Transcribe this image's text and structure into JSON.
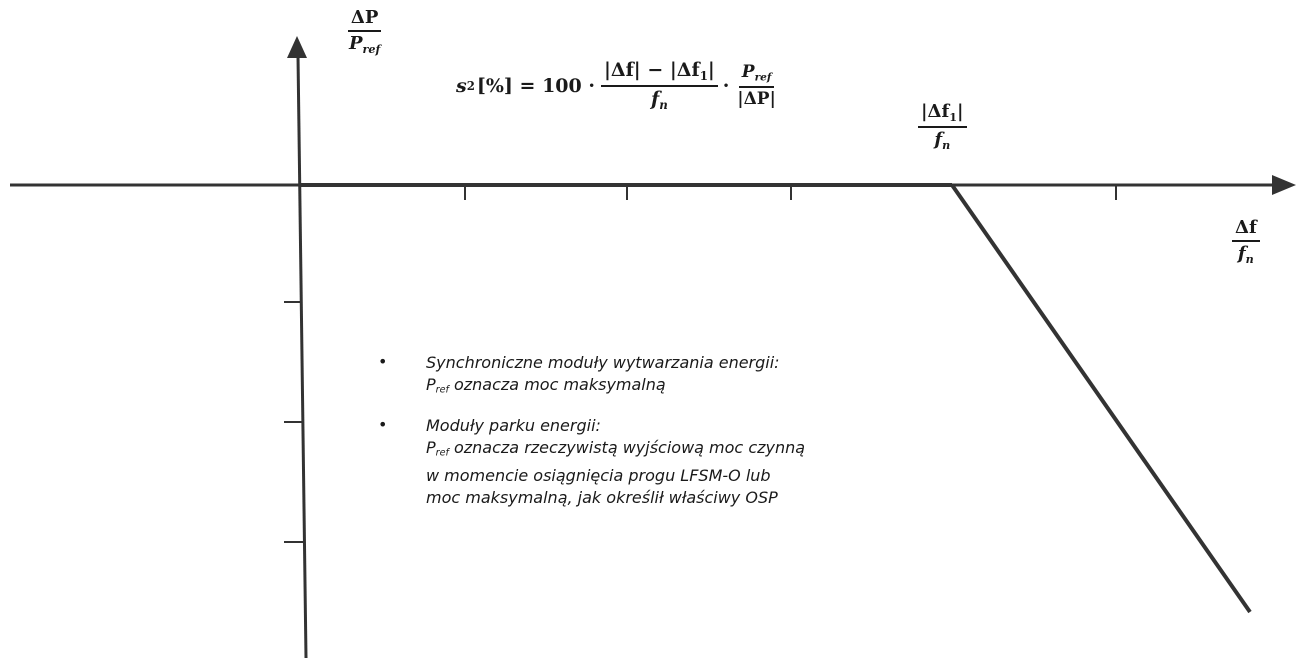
{
  "y_axis_label": {
    "numerator": "ΔP",
    "denominator": "P",
    "denominator_sub": "ref"
  },
  "x_axis_label": {
    "numerator": "Δf",
    "denominator": "f",
    "denominator_sub": "n"
  },
  "threshold_label": {
    "numerator": "|Δf",
    "numerator_sub": "1",
    "numerator_end": "|",
    "denominator": "f",
    "denominator_sub": "n"
  },
  "formula": {
    "lhs_var": "s",
    "lhs_sub": "2",
    "lhs_rest": "[%] = 100 ·",
    "frac1_num": "|Δf| − |Δf",
    "frac1_num_sub": "1",
    "frac1_num_end": "|",
    "frac1_den": "f",
    "frac1_den_sub": "n",
    "dot": "·",
    "frac2_num": "P",
    "frac2_num_sub": "ref",
    "frac2_den": "|ΔP|"
  },
  "notes": [
    {
      "bullet": "•",
      "lines": [
        "Synchroniczne moduły wytwarzania energii:"
      ],
      "pref_line": {
        "p": "P",
        "sub": "ref",
        "rest": " oznacza moc maksymalną"
      },
      "after_lines": []
    },
    {
      "bullet": "•",
      "lines": [
        "Moduły parku energii:"
      ],
      "pref_line": {
        "p": "P",
        "sub": "ref",
        "rest": " oznacza rzeczywistą wyjściową moc czynną"
      },
      "after_lines": [
        "w momencie osiągnięcia progu LFSM-O lub",
        "moc maksymalną, jak określił właściwy OSP"
      ]
    }
  ],
  "colors": {
    "line": "#333333",
    "text": "#1a1a1a",
    "background": "#ffffff"
  }
}
